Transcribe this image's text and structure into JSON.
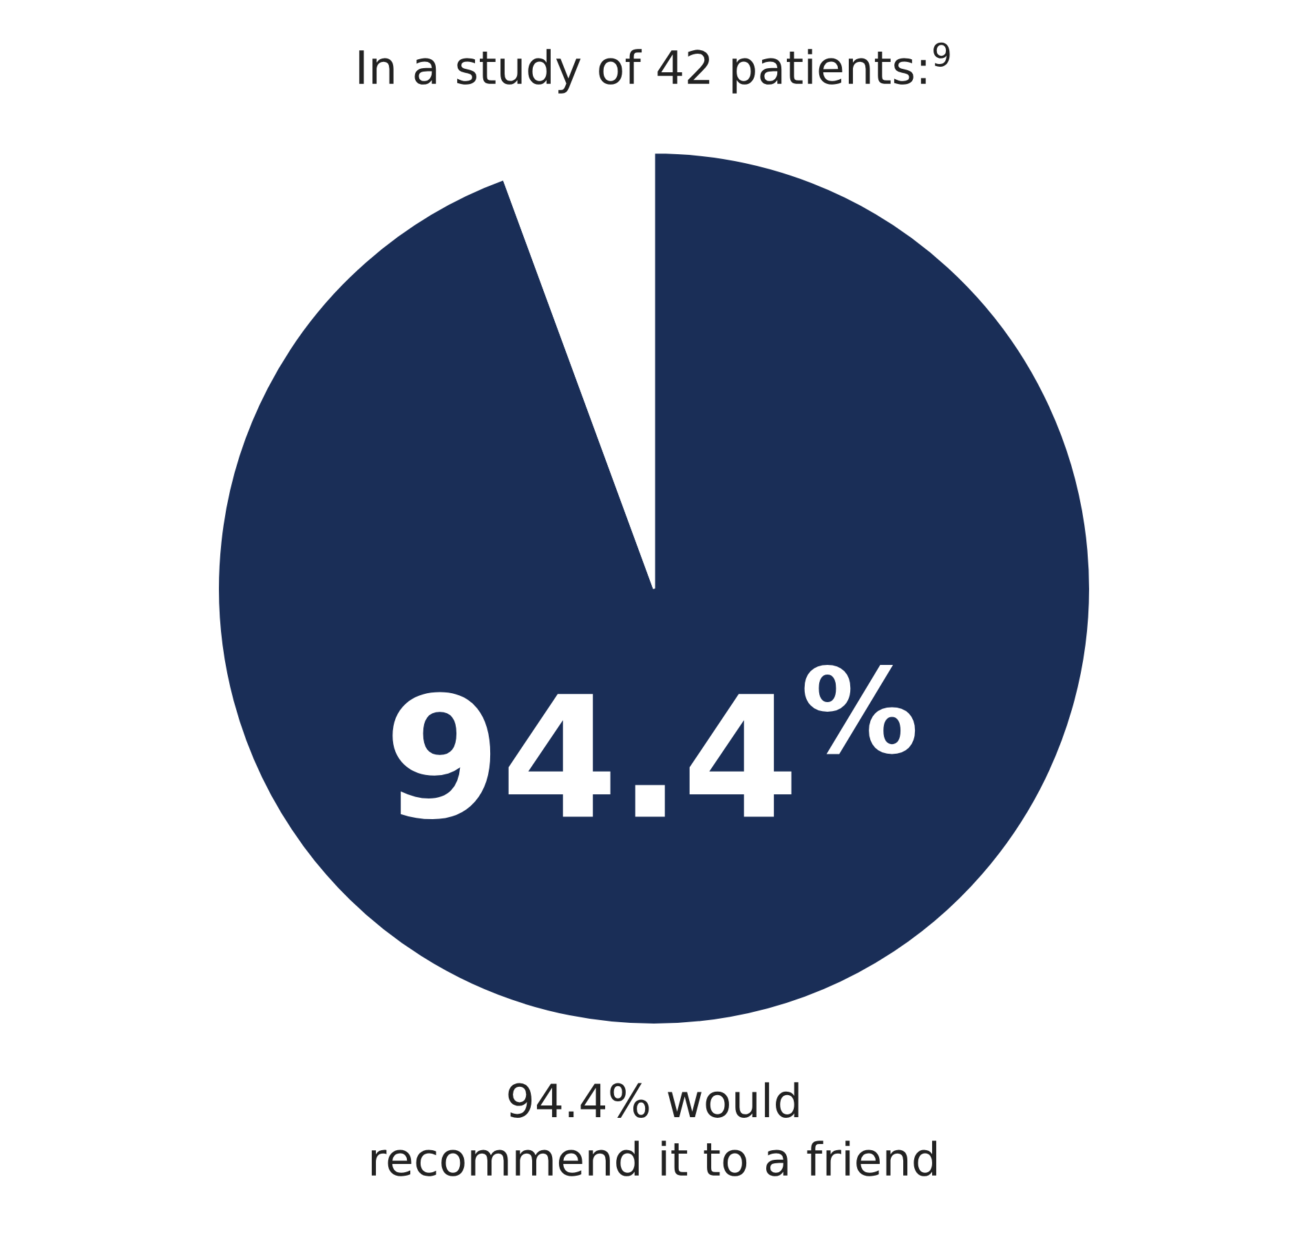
{
  "chart_data": {
    "type": "pie",
    "title": "In a study of 42 patients:$^{9}$",
    "categories": [
      null,
      null
    ],
    "values": [
      94.4,
      5.6
    ],
    "colors": [
      "#1a2e57",
      "#ffffff"
    ],
    "value_labels": [
      "94.4$^{%}$",
      null
    ],
    "annotations": [
      "94.4% would\nrecommend it to a friend"
    ]
  }
}
